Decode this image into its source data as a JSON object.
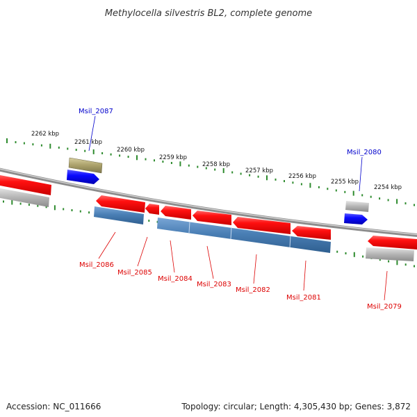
{
  "title": "Methylocella silvestris BL2, complete genome",
  "footer": {
    "accession": "Accession: NC_011666",
    "summary": "Topology: circular; Length: 4,305,430 bp; Genes: 3,872"
  },
  "ticks": [
    "2262 kbp",
    "2261 kbp",
    "2260 kbp",
    "2259 kbp",
    "2258 kbp",
    "2257 kbp",
    "2256 kbp",
    "2255 kbp",
    "2254 kbp"
  ],
  "genes": [
    {
      "label": "Msil_2087",
      "color": "#0000cc"
    },
    {
      "label": "Msil_2080",
      "color": "#0000cc"
    },
    {
      "label": "Msil_2086",
      "color": "#dd0000"
    },
    {
      "label": "Msil_2085",
      "color": "#dd0000"
    },
    {
      "label": "Msil_2084",
      "color": "#dd0000"
    },
    {
      "label": "Msil_2083",
      "color": "#dd0000"
    },
    {
      "label": "Msil_2082",
      "color": "#dd0000"
    },
    {
      "label": "Msil_2081",
      "color": "#dd0000"
    },
    {
      "label": "Msil_2079",
      "color": "#dd0000"
    }
  ],
  "colors": {
    "backbone": "#777777",
    "forward": "#0000ee",
    "reverse": "#ee0000",
    "cds_blue": "#4a7fb5",
    "gene_grey": "#aaaaaa",
    "gene_olive": "#a8a068",
    "ruler": "#2e8b2e"
  }
}
